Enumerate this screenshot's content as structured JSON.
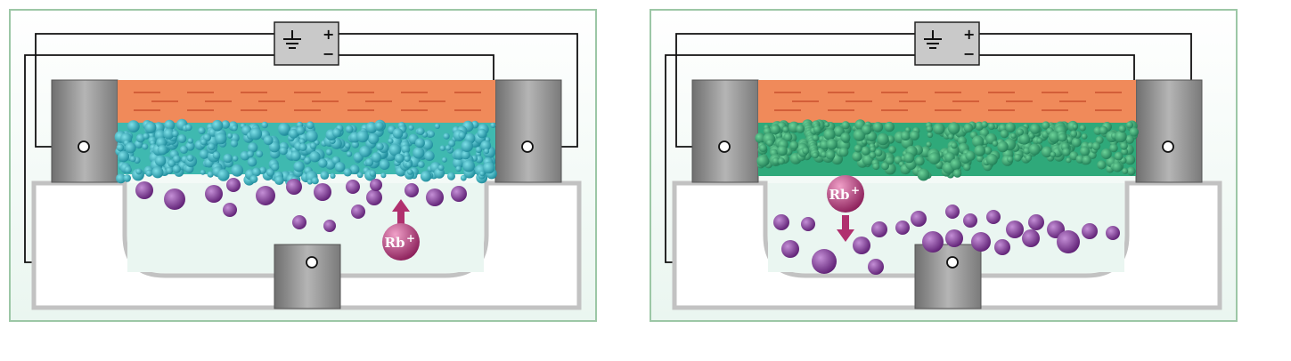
{
  "colors": {
    "frame": "#9cc7a6",
    "electrolyte": "#eef7f2",
    "gate_dielectric": "#f08a5a",
    "dielectric_stripe": "#c9502c",
    "electrode": "#8c8c8c",
    "container": "#c2c2c2",
    "wire": "#111111",
    "rb_ion": "#7a2f8f",
    "rb_label_ion": "#b0306e"
  },
  "panels": [
    {
      "id": "left",
      "source": {
        "ground_symbol": "⏚",
        "plus": "+",
        "minus": "−"
      },
      "ion": {
        "label": "Rb",
        "charge": "+",
        "arrow": "up"
      }
    },
    {
      "id": "right",
      "source": {
        "ground_symbol": "⏚",
        "plus": "+",
        "minus": "−"
      },
      "ion": {
        "label": "Rb",
        "charge": "+",
        "arrow": "down"
      }
    }
  ]
}
